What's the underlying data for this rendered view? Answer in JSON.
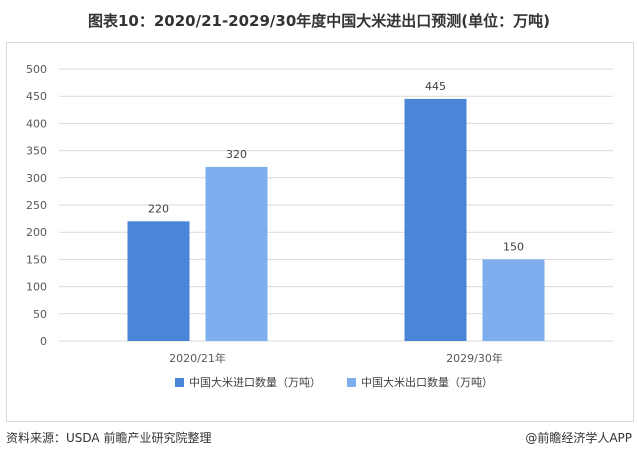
{
  "header": {
    "title": "图表10：2020/21-2029/30年度中国大米进出口预测(单位：万吨)"
  },
  "chart_data": {
    "type": "bar",
    "title": "图表10：2020/21-2029/30年度中国大米进出口预测(单位：万吨)",
    "categories": [
      "2020/21年",
      "2029/30年"
    ],
    "series": [
      {
        "name": "中国大米进口数量（万吨）",
        "values": [
          220,
          445
        ],
        "color": "#4a86d8"
      },
      {
        "name": "中国大米出口数量（万吨）",
        "values": [
          320,
          150
        ],
        "color": "#7eaeed"
      }
    ],
    "ylim": [
      0,
      500
    ],
    "yticks": [
      0,
      50,
      100,
      150,
      200,
      250,
      300,
      350,
      400,
      450,
      500
    ],
    "grid": true,
    "legend": "bottom",
    "data_labels": true
  },
  "footer": {
    "source": "资料来源：USDA  前瞻产业研究院整理",
    "credit": "@前瞻经济学人APP"
  }
}
